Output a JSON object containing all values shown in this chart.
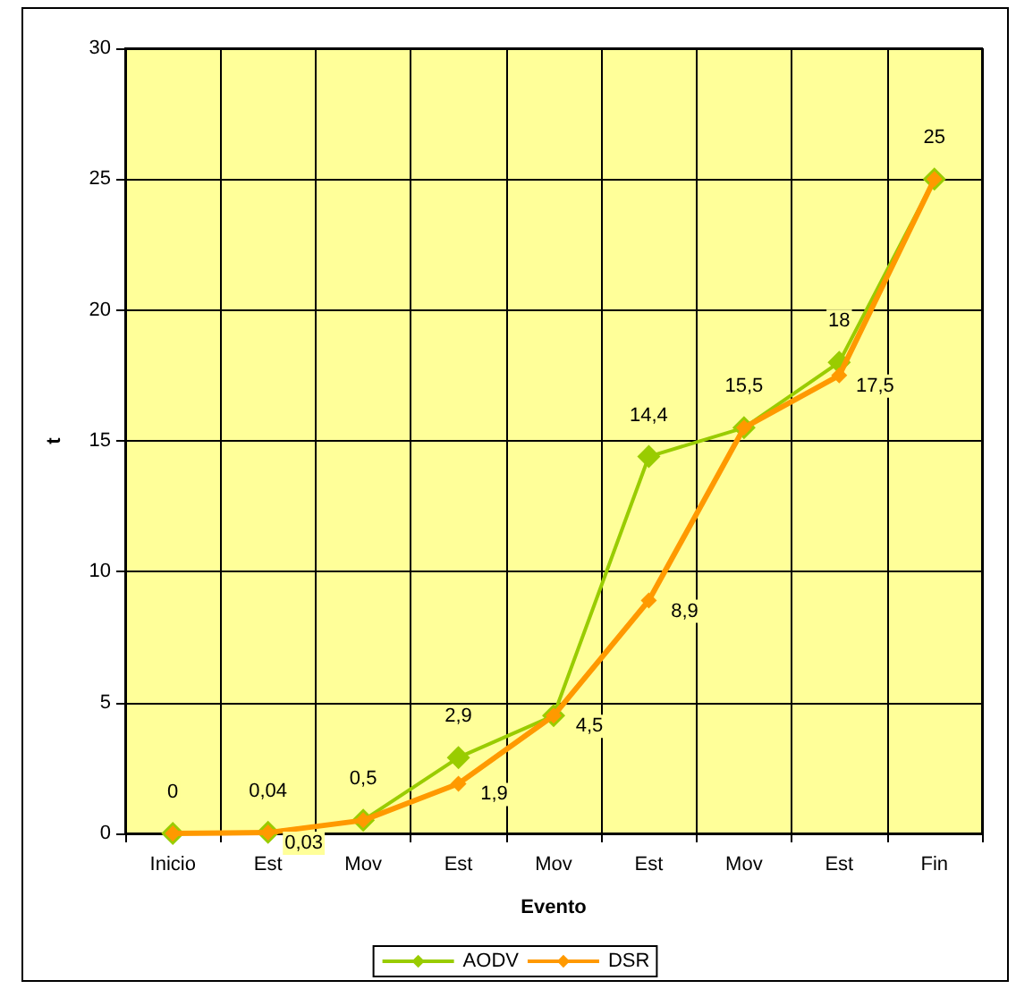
{
  "chart_data": {
    "type": "line",
    "xlabel": "Evento",
    "ylabel": "t",
    "categories": [
      "Inicio",
      "Est",
      "Mov",
      "Est",
      "Mov",
      "Est",
      "Mov",
      "Est",
      "Fin"
    ],
    "series": [
      {
        "name": "AODV",
        "color": "#99cc00",
        "values": [
          0,
          0.04,
          0.5,
          2.9,
          4.5,
          14.4,
          15.5,
          18,
          25
        ],
        "value_labels": [
          "0",
          "0,04",
          "0,5",
          "2,9",
          null,
          "14,4",
          "15,5",
          "18",
          "25"
        ]
      },
      {
        "name": "DSR",
        "color": "#ff9900",
        "values": [
          0,
          0.03,
          0.5,
          1.9,
          4.5,
          8.9,
          15.5,
          17.5,
          25
        ],
        "value_labels": [
          null,
          "0,03",
          null,
          "1,9",
          "4,5",
          "8,9",
          null,
          "17,5",
          null
        ]
      }
    ],
    "ylim": [
      0,
      30
    ],
    "yticks": [
      0,
      5,
      10,
      15,
      20,
      25,
      30
    ],
    "grid": true,
    "legend": "bottom",
    "marker": "diamond",
    "line_style": "solid"
  }
}
